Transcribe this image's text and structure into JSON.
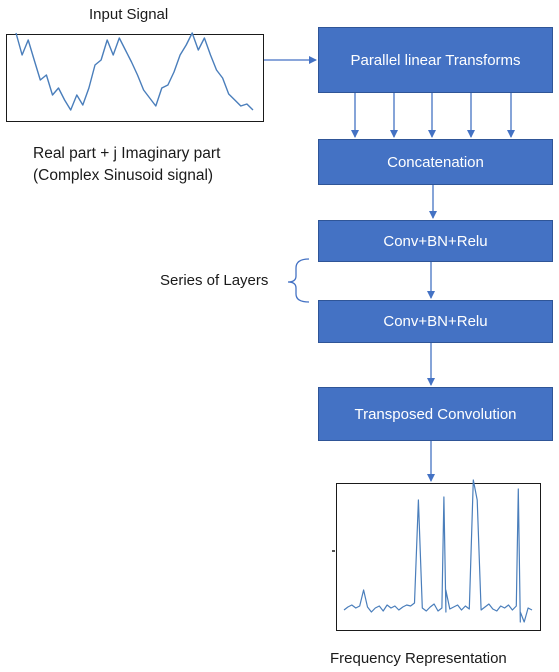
{
  "input": {
    "title": "Input Signal",
    "caption_line1": "Real part + j Imaginary part",
    "caption_line2": "(Complex Sinusoid signal)"
  },
  "blocks": {
    "parallel": "Parallel linear Transforms",
    "concat": "Concatenation",
    "conv1": "Conv+BN+Relu",
    "conv2": "Conv+BN+Relu",
    "transposed": "Transposed Convolution"
  },
  "series_label": "Series of Layers",
  "output_label": "Frequency Representation",
  "colors": {
    "block_fill": "#4472C4",
    "block_border": "#2F5597",
    "signal": "#4A7EBB",
    "arrow": "#4472C4"
  },
  "signals": {
    "input_wave": [
      33,
      55,
      40,
      60,
      80,
      75,
      95,
      88,
      100,
      110,
      95,
      105,
      88,
      65,
      60,
      40,
      55,
      38,
      50,
      62,
      75,
      90,
      98,
      106,
      88,
      85,
      72,
      55,
      45,
      33,
      50,
      38,
      55,
      70,
      78,
      94,
      100,
      106,
      104,
      110
    ],
    "spectrum": [
      610,
      607,
      605,
      608,
      606,
      590,
      607,
      612,
      608,
      606,
      611,
      605,
      608,
      606,
      610,
      607,
      605,
      606,
      603,
      500,
      608,
      611,
      607,
      604,
      611,
      608,
      590,
      609,
      607,
      605,
      610,
      606,
      609,
      480,
      500,
      610,
      607,
      604,
      609,
      611,
      606,
      608,
      605,
      610,
      606,
      612,
      622,
      608,
      610
    ]
  }
}
